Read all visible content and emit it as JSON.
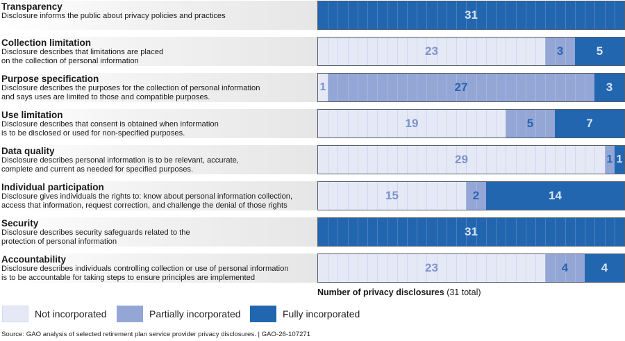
{
  "chart_data": {
    "type": "bar",
    "orientation": "horizontal-stacked",
    "total": 31,
    "xlabel_bold": "Number of privacy disclosures",
    "xlabel_note": "(31 total)",
    "legend_position": "bottom-left",
    "series": [
      {
        "name": "Not incorporated",
        "color": "#e5e9f6",
        "label_color": "#7d93cc"
      },
      {
        "name": "Partially incorporated",
        "color": "#93a6d6",
        "label_color": "#2b63ae"
      },
      {
        "name": "Fully incorporated",
        "color": "#2266b0",
        "label_color": "#dbe3f3"
      }
    ],
    "categories": [
      {
        "title": "Transparency",
        "desc": "Disclosure informs the public about privacy policies and practices",
        "values": [
          0,
          0,
          31
        ]
      },
      {
        "title": "Collection limitation",
        "desc": "Disclosure describes that limitations are placed\non the collection of personal information",
        "values": [
          23,
          3,
          5
        ]
      },
      {
        "title": "Purpose specification",
        "desc": "Disclosure describes the purposes for the collection of personal information\nand says uses are limited to those and compatible purposes.",
        "values": [
          1,
          27,
          3
        ]
      },
      {
        "title": "Use limitation",
        "desc": "Disclosure describes that consent is obtained when information\nis to be disclosed or used for non-specified purposes.",
        "values": [
          19,
          5,
          7
        ]
      },
      {
        "title": "Data quality",
        "desc": "Disclosure describes personal information is to be relevant, accurate,\ncomplete and current as needed for specified purposes.",
        "values": [
          29,
          1,
          1
        ]
      },
      {
        "title": "Individual participation",
        "desc": "Disclosure gives individuals the rights to: know about personal information collection,\naccess that information, request correction, and challenge the denial of those rights",
        "values": [
          15,
          2,
          14
        ]
      },
      {
        "title": "Security",
        "desc": "Disclosure describes security safeguards related to the\nprotection of personal information",
        "values": [
          0,
          0,
          31
        ]
      },
      {
        "title": "Accountability",
        "desc": "Disclosure describes individuals controlling collection or use of personal information\nis to be accountable for taking steps to ensure principles are implemented",
        "values": [
          23,
          4,
          4
        ]
      }
    ]
  },
  "source": "Source: GAO analysis of selected retirement plan service provider privacy disclosures.  |  GAO-26-107271"
}
